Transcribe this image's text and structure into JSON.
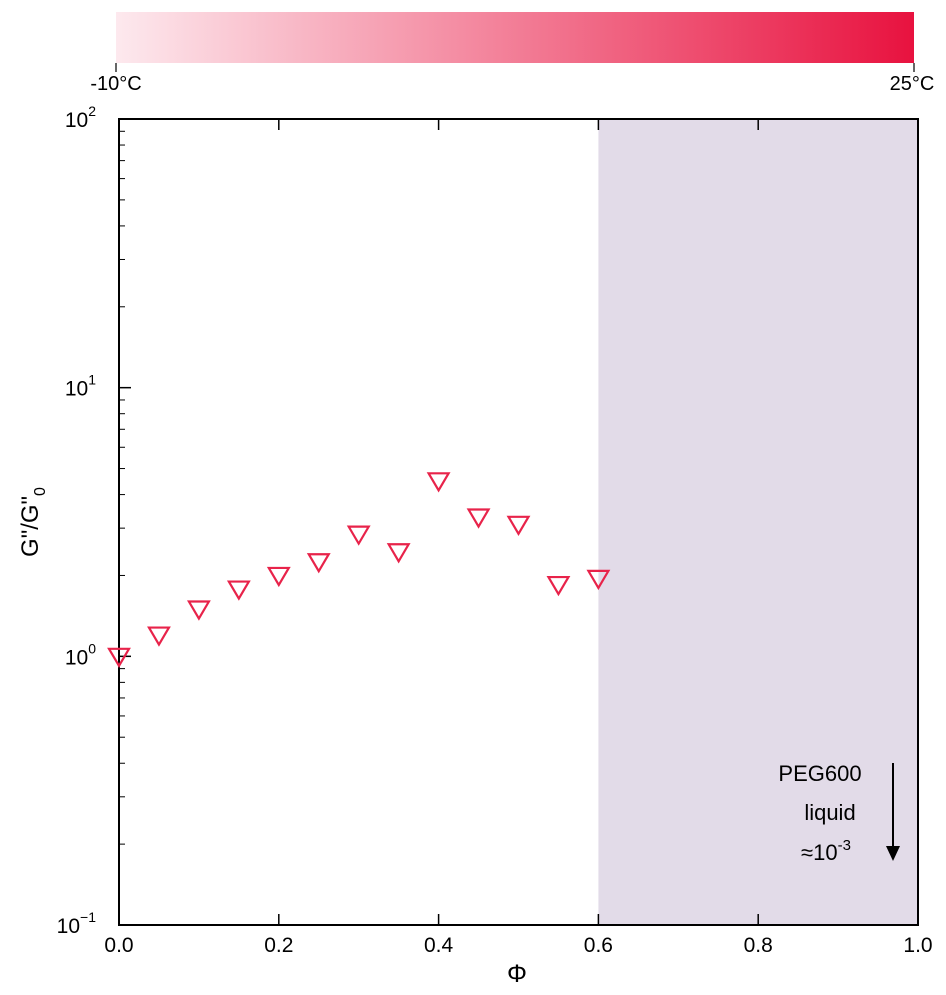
{
  "colorbar": {
    "min_label": "-10°C",
    "max_label": "25°C",
    "color_min": "#fde9ee",
    "color_max": "#e8123f"
  },
  "shade_color": "#e2dbe8",
  "marker_color": "#e8234a",
  "annotation": {
    "line1": "PEG600",
    "line2": "liquid",
    "line3_prefix": "≈10",
    "line3_exp": "-3"
  },
  "chart_data": {
    "type": "scatter",
    "xlabel": "Φ",
    "ylabel_main": "G\"/G\"",
    "ylabel_sub": "0",
    "xlim": [
      0.0,
      1.0
    ],
    "ylim": [
      0.1,
      100
    ],
    "yscale": "log",
    "grid": false,
    "x_ticks": [
      "0.0",
      "0.2",
      "0.4",
      "0.6",
      "0.8",
      "1.0"
    ],
    "y_ticks": [
      {
        "base": "10",
        "exp": "−1"
      },
      {
        "base": "10",
        "exp": "0"
      },
      {
        "base": "10",
        "exp": "1"
      },
      {
        "base": "10",
        "exp": "2"
      }
    ],
    "shaded_region_x": [
      0.6,
      1.0
    ],
    "marker": "triangle-down-open",
    "x": [
      0.0,
      0.05,
      0.1,
      0.15,
      0.2,
      0.25,
      0.3,
      0.35,
      0.4,
      0.45,
      0.5,
      0.55,
      0.6
    ],
    "y": [
      1.0,
      1.2,
      1.5,
      1.78,
      2.0,
      2.25,
      2.85,
      2.45,
      4.5,
      3.3,
      3.1,
      1.85,
      1.95
    ]
  }
}
